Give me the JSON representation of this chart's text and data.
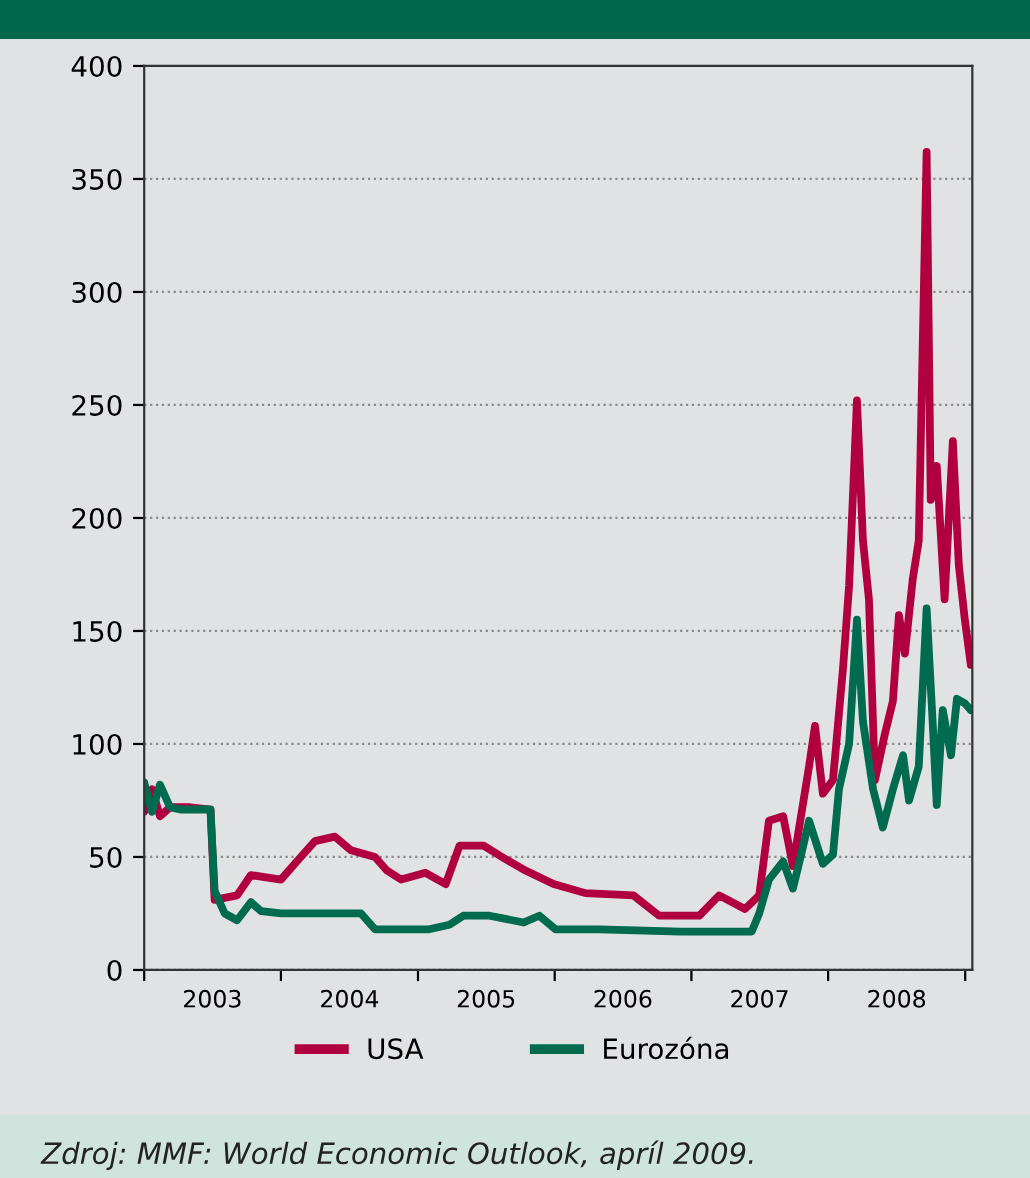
{
  "chart_data": {
    "type": "line",
    "xlim": [
      "2003-01-01",
      "2009-01-20"
    ],
    "xticks": [
      {
        "value": "2003-01-01",
        "label": null
      },
      {
        "value": "2003-07-02",
        "label": "2003"
      },
      {
        "value": "2004-01-01",
        "label": null
      },
      {
        "value": "2004-07-02",
        "label": "2004"
      },
      {
        "value": "2005-01-01",
        "label": null
      },
      {
        "value": "2005-07-02",
        "label": "2005"
      },
      {
        "value": "2006-01-01",
        "label": null
      },
      {
        "value": "2006-07-02",
        "label": "2006"
      },
      {
        "value": "2007-01-01",
        "label": null
      },
      {
        "value": "2007-07-02",
        "label": "2007"
      },
      {
        "value": "2008-01-01",
        "label": null
      },
      {
        "value": "2008-07-02",
        "label": "2008"
      },
      {
        "value": "2009-01-01",
        "label": null
      }
    ],
    "ylim": [
      0,
      400
    ],
    "yticks": [
      0,
      50,
      100,
      150,
      200,
      250,
      300,
      350,
      400
    ],
    "grid": "y",
    "legend": "bottom",
    "line_style": "solid",
    "marker": "none",
    "annotations": [
      "Zdroj: MMF: World Economic Outlook, apríl 2009."
    ],
    "series": [
      {
        "name": "USA",
        "color": "#b0003f",
        "x": [
          "2003-01-01",
          "2003-01-22",
          "2003-02-12",
          "2003-03-11",
          "2003-05-04",
          "2003-06-27",
          "2003-07-08",
          "2003-09-06",
          "2003-10-13",
          "2004-01-01",
          "2004-02-23",
          "2004-04-01",
          "2004-05-24",
          "2004-07-06",
          "2004-09-08",
          "2004-10-10",
          "2004-11-17",
          "2005-01-21",
          "2005-03-16",
          "2005-04-22",
          "2005-06-25",
          "2005-08-23",
          "2005-10-15",
          "2005-12-29",
          "2006-03-24",
          "2006-07-30",
          "2006-10-07",
          "2007-01-22",
          "2007-03-16",
          "2007-05-24",
          "2007-07-01",
          "2007-07-27",
          "2007-09-03",
          "2007-09-29",
          "2007-11-11",
          "2007-11-27",
          "2007-12-18",
          "2008-01-14",
          "2008-02-10",
          "2008-02-26",
          "2008-03-18",
          "2008-04-03",
          "2008-04-19",
          "2008-05-05",
          "2008-05-31",
          "2008-06-22",
          "2008-07-08",
          "2008-07-24",
          "2008-08-14",
          "2008-08-30",
          "2008-09-20",
          "2008-10-01",
          "2008-10-17",
          "2008-11-07",
          "2008-11-29",
          "2008-12-15",
          "2008-12-31",
          "2009-01-16"
        ],
        "values": [
          70,
          80,
          68,
          72,
          72,
          71,
          31,
          33,
          42,
          40,
          50,
          57,
          59,
          53,
          50,
          44,
          40,
          43,
          38,
          55,
          55,
          49,
          44,
          38,
          34,
          33,
          24,
          24,
          33,
          27,
          33,
          66,
          68,
          46,
          90,
          108,
          78,
          84,
          134,
          170,
          252,
          190,
          164,
          84,
          104,
          119,
          157,
          140,
          173,
          190,
          362,
          208,
          223,
          164,
          234,
          179,
          155,
          135
        ]
      },
      {
        "name": "Eurozóna",
        "color": "#006b4e",
        "x": [
          "2003-01-01",
          "2003-01-22",
          "2003-02-12",
          "2003-03-11",
          "2003-04-07",
          "2003-06-27",
          "2003-07-08",
          "2003-08-04",
          "2003-09-06",
          "2003-10-13",
          "2003-11-09",
          "2004-01-01",
          "2004-04-17",
          "2004-08-02",
          "2004-09-08",
          "2005-01-31",
          "2005-03-26",
          "2005-05-02",
          "2005-07-11",
          "2005-10-10",
          "2005-11-21",
          "2006-01-03",
          "2006-05-01",
          "2006-12-04",
          "2007-06-11",
          "2007-07-01",
          "2007-07-27",
          "2007-09-03",
          "2007-09-29",
          "2007-10-21",
          "2007-11-11",
          "2007-12-18",
          "2008-01-14",
          "2008-01-30",
          "2008-02-26",
          "2008-03-18",
          "2008-04-03",
          "2008-04-30",
          "2008-05-26",
          "2008-06-22",
          "2008-07-19",
          "2008-08-04",
          "2008-08-30",
          "2008-09-20",
          "2008-10-06",
          "2008-10-17",
          "2008-11-02",
          "2008-11-24",
          "2008-12-10",
          "2008-12-31",
          "2009-01-16"
        ],
        "values": [
          83,
          70,
          82,
          72,
          71,
          71,
          35,
          25,
          22,
          30,
          26,
          25,
          25,
          25,
          18,
          18,
          20,
          24,
          24,
          21,
          24,
          18,
          18,
          17,
          17,
          25,
          40,
          48,
          36,
          51,
          66,
          47,
          51,
          80,
          100,
          155,
          110,
          80,
          63,
          80,
          95,
          75,
          90,
          160,
          110,
          73,
          115,
          95,
          120,
          118,
          115
        ]
      }
    ]
  }
}
